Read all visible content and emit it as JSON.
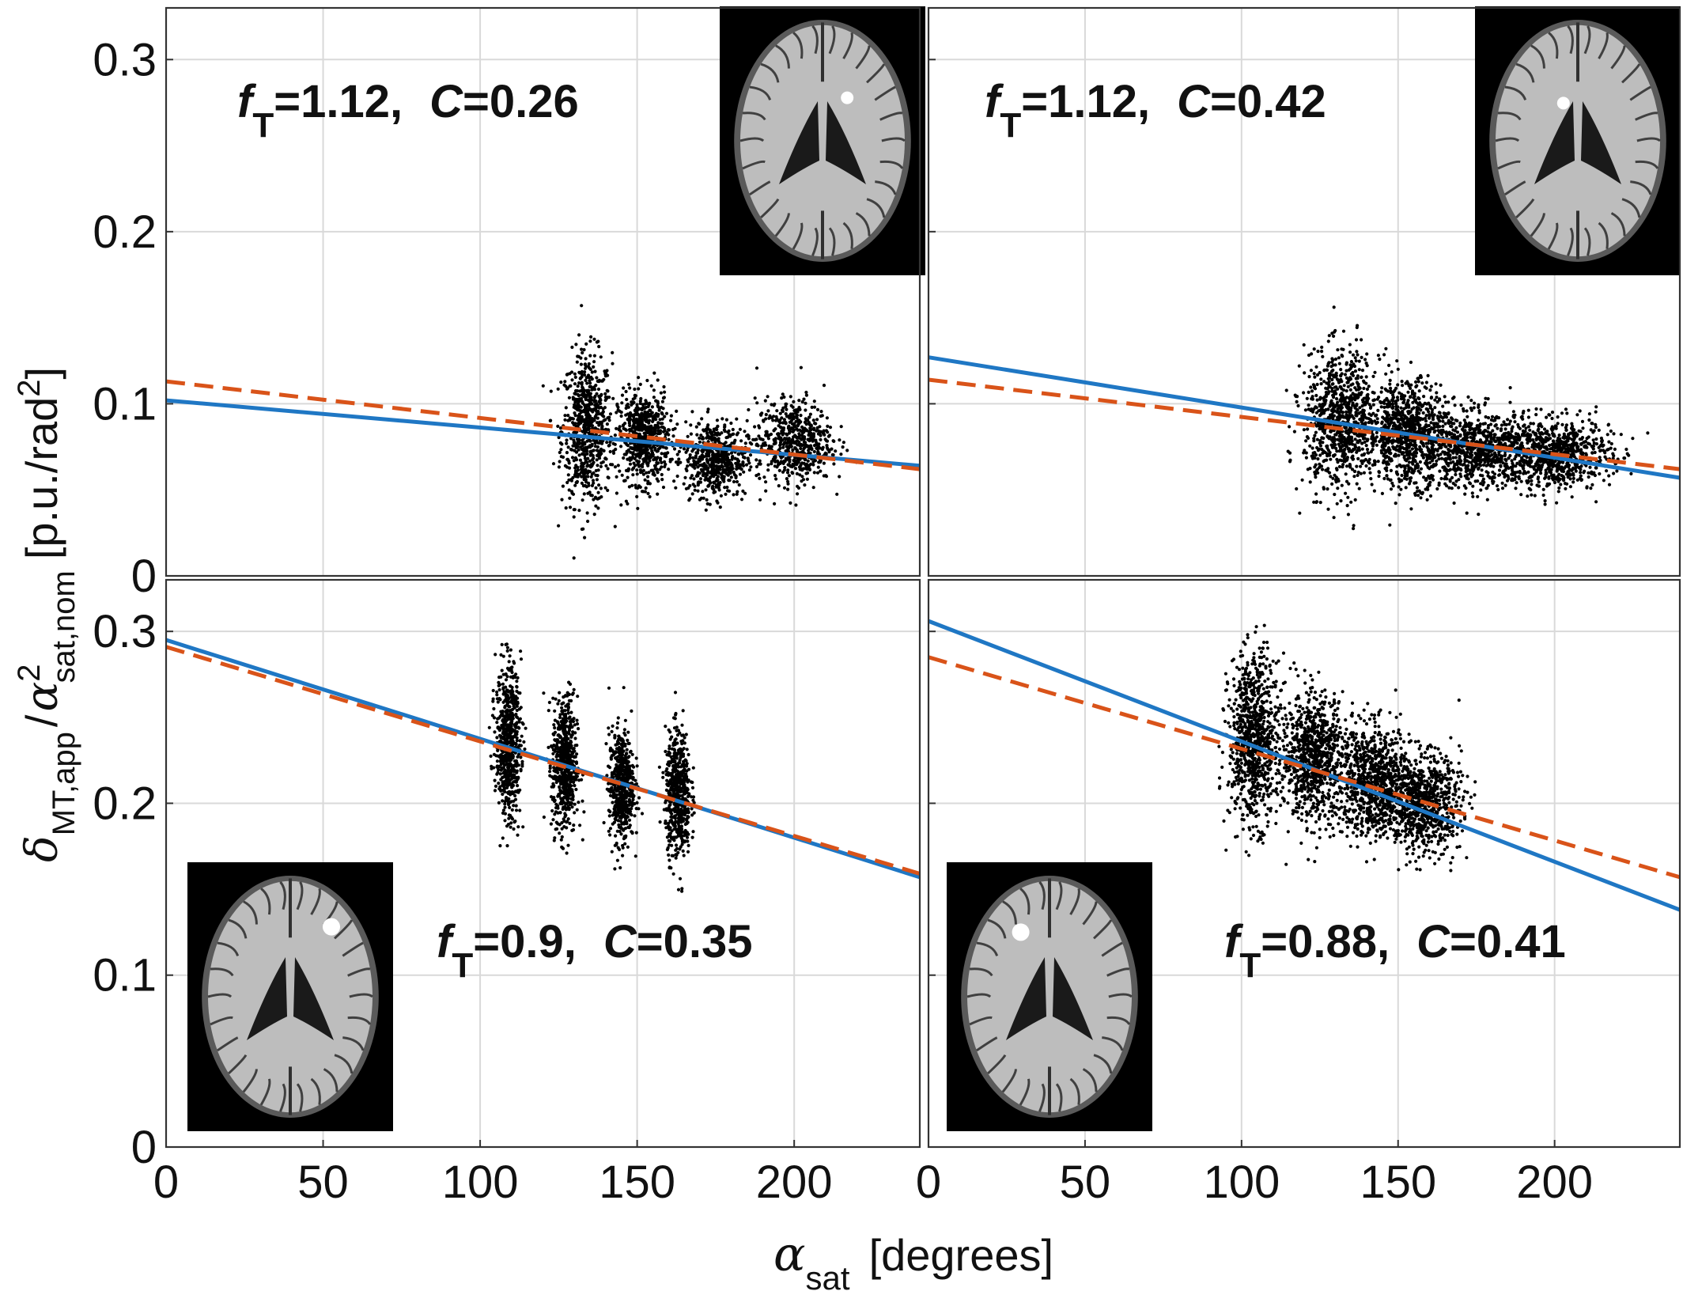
{
  "figure": {
    "x_axis_label": {
      "symbol": "α",
      "sub": "sat",
      "unit": "[degrees]"
    },
    "y_axis_label": {
      "symbol": "δ",
      "sub": "MT,app",
      "slash": "/",
      "symbol2": "α",
      "sup2": "2",
      "sub2": "sat,nom",
      "unit": "[p.u./rad",
      "unit_sup": "2",
      "unit_end": "]"
    },
    "y_tick_labels": [
      "0",
      "0.1",
      "0.2",
      "0.3"
    ],
    "x_tick_labels": [
      "0",
      "50",
      "100",
      "150",
      "200"
    ]
  },
  "colors": {
    "scatter": "#000000",
    "solid_fit": "#1f77c4",
    "dashed_fit": "#d95319",
    "grid": "#d9d9d9"
  },
  "chart_data": [
    {
      "type": "scatter",
      "panel": "top-left",
      "xlim": [
        0,
        240
      ],
      "ylim": [
        0,
        0.33
      ],
      "grid": true,
      "annotation": {
        "f_label": "f",
        "f_sub": "T",
        "f_value": "=1.12,",
        "c_label": "C",
        "c_value": "=0.26"
      },
      "inset": {
        "icon": "brain-axial-slice-icon",
        "lesion": "small-bright-spot-right"
      },
      "clusters": [
        {
          "x": 134,
          "spread_x": 4,
          "y_mean": 0.085,
          "y_sd": 0.022,
          "n": 700
        },
        {
          "x": 152,
          "spread_x": 4,
          "y_mean": 0.08,
          "y_sd": 0.013,
          "n": 650
        },
        {
          "x": 175,
          "spread_x": 5,
          "y_mean": 0.068,
          "y_sd": 0.011,
          "n": 550
        },
        {
          "x": 200,
          "spread_x": 6,
          "y_mean": 0.078,
          "y_sd": 0.012,
          "n": 600
        }
      ],
      "series": [
        {
          "style": "solid",
          "color": "#1f77c4",
          "x": [
            0,
            240
          ],
          "y": [
            0.102,
            0.064
          ]
        },
        {
          "style": "dashed",
          "color": "#d95319",
          "x": [
            0,
            240
          ],
          "y": [
            0.113,
            0.062
          ]
        }
      ]
    },
    {
      "type": "scatter",
      "panel": "top-right",
      "xlim": [
        0,
        240
      ],
      "ylim": [
        0,
        0.33
      ],
      "grid": true,
      "annotation": {
        "f_label": "f",
        "f_sub": "T",
        "f_value": "=1.12,",
        "c_label": "C",
        "c_value": "=0.42"
      },
      "inset": {
        "icon": "brain-axial-slice-icon",
        "lesion": "small-spot-center"
      },
      "clusters": [
        {
          "x": 132,
          "spread_x": 6,
          "y_mean": 0.09,
          "y_sd": 0.02,
          "n": 900
        },
        {
          "x": 153,
          "spread_x": 6,
          "y_mean": 0.083,
          "y_sd": 0.015,
          "n": 800
        },
        {
          "x": 175,
          "spread_x": 9,
          "y_mean": 0.073,
          "y_sd": 0.011,
          "n": 800
        },
        {
          "x": 200,
          "spread_x": 9,
          "y_mean": 0.071,
          "y_sd": 0.01,
          "n": 800
        }
      ],
      "series": [
        {
          "style": "solid",
          "color": "#1f77c4",
          "x": [
            0,
            240
          ],
          "y": [
            0.127,
            0.057
          ]
        },
        {
          "style": "dashed",
          "color": "#d95319",
          "x": [
            0,
            240
          ],
          "y": [
            0.114,
            0.062
          ]
        }
      ]
    },
    {
      "type": "scatter",
      "panel": "bottom-left",
      "xlim": [
        0,
        240
      ],
      "ylim": [
        0,
        0.33
      ],
      "grid": true,
      "annotation": {
        "f_label": "f",
        "f_sub": "T",
        "f_value": "=0.9,",
        "c_label": "C",
        "c_value": "=0.35"
      },
      "inset": {
        "icon": "brain-axial-slice-icon",
        "lesion": "bright-spot-right-frontal"
      },
      "clusters": [
        {
          "x": 109,
          "spread_x": 2,
          "y_mean": 0.236,
          "y_sd": 0.022,
          "n": 650
        },
        {
          "x": 127,
          "spread_x": 2,
          "y_mean": 0.222,
          "y_sd": 0.02,
          "n": 600
        },
        {
          "x": 145,
          "spread_x": 2,
          "y_mean": 0.21,
          "y_sd": 0.016,
          "n": 550
        },
        {
          "x": 163,
          "spread_x": 2,
          "y_mean": 0.205,
          "y_sd": 0.018,
          "n": 600
        }
      ],
      "series": [
        {
          "style": "solid",
          "color": "#1f77c4",
          "x": [
            0,
            240
          ],
          "y": [
            0.295,
            0.157
          ]
        },
        {
          "style": "dashed",
          "color": "#d95319",
          "x": [
            0,
            240
          ],
          "y": [
            0.291,
            0.159
          ]
        }
      ]
    },
    {
      "type": "scatter",
      "panel": "bottom-right",
      "xlim": [
        0,
        240
      ],
      "ylim": [
        0,
        0.33
      ],
      "grid": true,
      "annotation": {
        "f_label": "f",
        "f_sub": "T",
        "f_value": "=0.88,",
        "c_label": "C",
        "c_value": "=0.41"
      },
      "inset": {
        "icon": "brain-axial-slice-icon",
        "lesion": "bright-spot-left-frontal"
      },
      "clusters": [
        {
          "x": 104,
          "spread_x": 4,
          "y_mean": 0.237,
          "y_sd": 0.024,
          "n": 900
        },
        {
          "x": 123,
          "spread_x": 5,
          "y_mean": 0.227,
          "y_sd": 0.018,
          "n": 850
        },
        {
          "x": 142,
          "spread_x": 6,
          "y_mean": 0.213,
          "y_sd": 0.016,
          "n": 850
        },
        {
          "x": 158,
          "spread_x": 6,
          "y_mean": 0.2,
          "y_sd": 0.014,
          "n": 800
        }
      ],
      "series": [
        {
          "style": "solid",
          "color": "#1f77c4",
          "x": [
            0,
            240
          ],
          "y": [
            0.306,
            0.138
          ]
        },
        {
          "style": "dashed",
          "color": "#d95319",
          "x": [
            0,
            240
          ],
          "y": [
            0.285,
            0.157
          ]
        }
      ]
    }
  ]
}
